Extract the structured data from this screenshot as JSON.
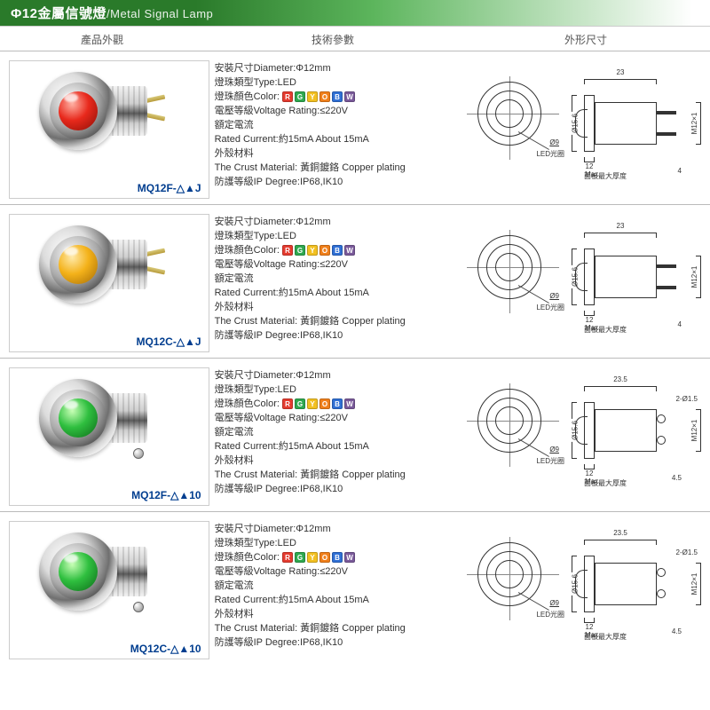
{
  "title": {
    "phi": "Φ",
    "main": "12金屬信號燈",
    "sub": "/Metal Signal Lamp"
  },
  "headers": [
    "產品外觀",
    "技術參數",
    "外形尺寸"
  ],
  "specs": {
    "diameter": "安裝尺寸Diameter:Φ12mm",
    "type": "燈珠類型Type:LED",
    "color_label": "燈珠顏色Color:",
    "voltage": "電壓等級Voltage Rating:≤220V",
    "rated_label": "額定電流",
    "rated_current": "Rated Current:約15mA   About 15mA",
    "crust_label": "外殼材料",
    "crust": "The Crust Material: 黃銅鍍鉻 Copper plating",
    "ip": "防護等級IP Degree:IP68,IK10"
  },
  "color_chips": [
    {
      "letter": "R",
      "bg": "#e43b2f"
    },
    {
      "letter": "G",
      "bg": "#2fa84f"
    },
    {
      "letter": "Y",
      "bg": "#f2c021"
    },
    {
      "letter": "O",
      "bg": "#f07f1a"
    },
    {
      "letter": "B",
      "bg": "#2f6fd4"
    },
    {
      "letter": "W",
      "bg": "#7a5a9a"
    }
  ],
  "tech_labels": {
    "front_dia": "Ø9",
    "front_note": "LED光圈",
    "flange_dia": "Ø15.6",
    "thread": "M12×1",
    "under_note": "面板最大厚度"
  },
  "rows": [
    {
      "model": "MQ12F-△▲J",
      "lens_gradient": [
        "#ffb0a3",
        "#e8291c",
        "#8a0e05"
      ],
      "connector": "pins",
      "side": {
        "top_dim": "23",
        "bot_dim": "12 Max.",
        "extra": "",
        "extra2": "4"
      }
    },
    {
      "model": "MQ12C-△▲J",
      "lens_gradient": [
        "#ffe9a8",
        "#f4b21a",
        "#a36a05"
      ],
      "connector": "pins",
      "side": {
        "top_dim": "23",
        "bot_dim": "12 Max.",
        "extra": "",
        "extra2": "4"
      }
    },
    {
      "model": "MQ12F-△▲10",
      "lens_gradient": [
        "#c7ffb5",
        "#2fbf3f",
        "#0c6a18"
      ],
      "connector": "screws",
      "side": {
        "top_dim": "23.5",
        "bot_dim": "12 Max.",
        "extra": "2-Ø1.5",
        "extra2": "4.5"
      }
    },
    {
      "model": "MQ12C-△▲10",
      "lens_gradient": [
        "#c7ffb5",
        "#2fbf3f",
        "#0c6a18"
      ],
      "connector": "screws",
      "side": {
        "top_dim": "23.5",
        "bot_dim": "12 Max.",
        "extra": "2-Ø1.5",
        "extra2": "4.5"
      }
    }
  ]
}
